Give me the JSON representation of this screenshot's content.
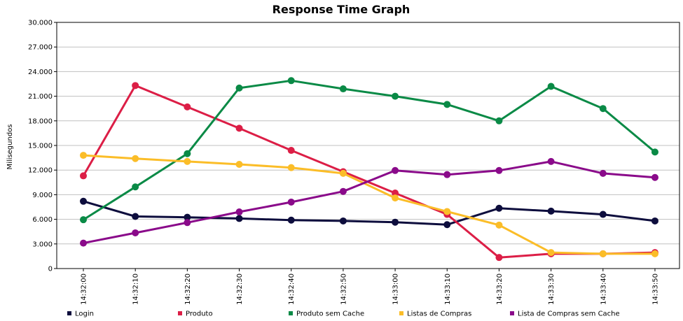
{
  "chart_data": {
    "type": "line",
    "title": "Response Time Graph",
    "xlabel": "",
    "ylabel": "Milisegundos",
    "ylim": [
      0,
      30000
    ],
    "y_ticks": [
      0,
      3000,
      6000,
      9000,
      12000,
      15000,
      18000,
      21000,
      24000,
      27000,
      30000
    ],
    "y_tick_labels": [
      "0",
      "3.000",
      "6.000",
      "9.000",
      "12.000",
      "15.000",
      "18.000",
      "21.000",
      "24.000",
      "27.000",
      "30.000"
    ],
    "categories": [
      "14:32:00",
      "14:32:10",
      "14:32:20",
      "14:32:30",
      "14:32:40",
      "14:32:50",
      "14:33:00",
      "14:33:10",
      "14:33:20",
      "14:33:30",
      "14:33:40",
      "14:33:50"
    ],
    "grid": true,
    "legend_position": "bottom",
    "series": [
      {
        "name": "Login",
        "color": "#0d0d3d",
        "values": [
          8200,
          6350,
          6250,
          6100,
          5900,
          5800,
          5650,
          5350,
          7350,
          7000,
          6600,
          5800
        ]
      },
      {
        "name": "Produto",
        "color": "#dc1e46",
        "values": [
          11300,
          22300,
          19700,
          17100,
          14400,
          11800,
          9200,
          6600,
          1350,
          1800,
          1800,
          1950
        ]
      },
      {
        "name": "Produto sem Cache",
        "color": "#0a8a46",
        "values": [
          5950,
          9950,
          14000,
          22000,
          22900,
          21900,
          21000,
          20000,
          18000,
          22200,
          19500,
          14200
        ]
      },
      {
        "name": "Listas de Compras",
        "color": "#fbbd28",
        "values": [
          13800,
          13400,
          13050,
          12700,
          12300,
          11600,
          8600,
          6950,
          5300,
          1950,
          1800,
          1800
        ]
      },
      {
        "name": "Lista de Compras sem Cache",
        "color": "#8a0a8a",
        "values": [
          3100,
          4350,
          5600,
          6900,
          8100,
          9400,
          11950,
          11450,
          11950,
          13050,
          11600,
          11100
        ]
      }
    ]
  }
}
